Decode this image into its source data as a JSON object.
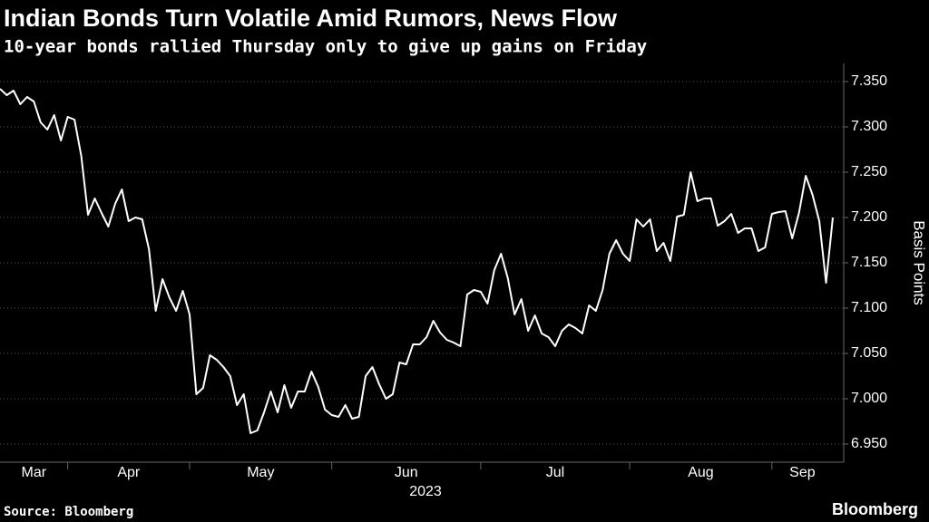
{
  "chart_data": {
    "type": "line",
    "title": "Indian Bonds Turn Volatile Amid Rumors, News Flow",
    "subtitle": "10-year bonds rallied Thursday only to give up gains on Friday",
    "y_label": "Basis Points",
    "x_label": "2023",
    "source": "Source: Bloomberg",
    "brand": "Bloomberg",
    "color": "#ffffff",
    "grid": true,
    "categories": [
      "Mar",
      null,
      null,
      null,
      null,
      null,
      null,
      null,
      null,
      null,
      "Apr",
      null,
      null,
      null,
      null,
      null,
      null,
      null,
      null,
      null,
      null,
      null,
      null,
      null,
      null,
      null,
      null,
      null,
      "May",
      null,
      null,
      null,
      null,
      null,
      null,
      null,
      null,
      null,
      null,
      null,
      null,
      null,
      null,
      null,
      null,
      null,
      null,
      null,
      null,
      "Jun",
      null,
      null,
      null,
      null,
      null,
      null,
      null,
      null,
      null,
      null,
      null,
      null,
      null,
      null,
      null,
      null,
      null,
      null,
      null,
      null,
      null,
      "Jul",
      null,
      null,
      null,
      null,
      null,
      null,
      null,
      null,
      null,
      null,
      null,
      null,
      null,
      null,
      null,
      null,
      null,
      null,
      null,
      null,
      null,
      "Aug",
      null,
      null,
      null,
      null,
      null,
      null,
      null,
      null,
      null,
      null,
      null,
      null,
      null,
      null,
      null,
      null,
      null,
      null,
      null,
      null,
      "Sep",
      null,
      null,
      null,
      null,
      null,
      null,
      null,
      null,
      null
    ],
    "values": [
      7.342,
      7.335,
      7.34,
      7.325,
      7.333,
      7.328,
      7.305,
      7.297,
      7.313,
      7.285,
      7.311,
      7.308,
      7.268,
      7.203,
      7.221,
      7.205,
      7.19,
      7.215,
      7.231,
      7.196,
      7.2,
      7.198,
      7.165,
      7.097,
      7.132,
      7.112,
      7.097,
      7.119,
      7.093,
      7.005,
      7.012,
      7.048,
      7.043,
      7.035,
      7.025,
      6.993,
      7.005,
      6.962,
      6.965,
      6.985,
      7.008,
      6.985,
      7.015,
      6.99,
      7.008,
      7.008,
      7.03,
      7.013,
      6.988,
      6.982,
      6.98,
      6.993,
      6.978,
      6.98,
      7.025,
      7.035,
      7.016,
      7.0,
      7.005,
      7.04,
      7.038,
      7.06,
      7.06,
      7.068,
      7.086,
      7.073,
      7.065,
      7.062,
      7.058,
      7.115,
      7.12,
      7.118,
      7.105,
      7.142,
      7.16,
      7.133,
      7.093,
      7.11,
      7.075,
      7.092,
      7.072,
      7.068,
      7.058,
      7.075,
      7.082,
      7.078,
      7.072,
      7.103,
      7.097,
      7.12,
      7.16,
      7.175,
      7.16,
      7.152,
      7.198,
      7.19,
      7.198,
      7.163,
      7.172,
      7.152,
      7.201,
      7.203,
      7.25,
      7.218,
      7.221,
      7.221,
      7.191,
      7.196,
      7.204,
      7.183,
      7.188,
      7.188,
      7.163,
      7.167,
      7.204,
      7.206,
      7.207,
      7.177,
      7.205,
      7.246,
      7.225,
      7.196,
      7.128,
      7.2
    ],
    "ylim": [
      6.93,
      7.37
    ],
    "yticks": [
      {
        "value": 6.95,
        "label": "6.950"
      },
      {
        "value": 7.0,
        "label": "7.000"
      },
      {
        "value": 7.05,
        "label": "7.050"
      },
      {
        "value": 7.1,
        "label": "7.100"
      },
      {
        "value": 7.15,
        "label": "7.150"
      },
      {
        "value": 7.2,
        "label": "7.200"
      },
      {
        "value": 7.25,
        "label": "7.250"
      },
      {
        "value": 7.3,
        "label": "7.300"
      },
      {
        "value": 7.35,
        "label": "7.350"
      }
    ]
  }
}
